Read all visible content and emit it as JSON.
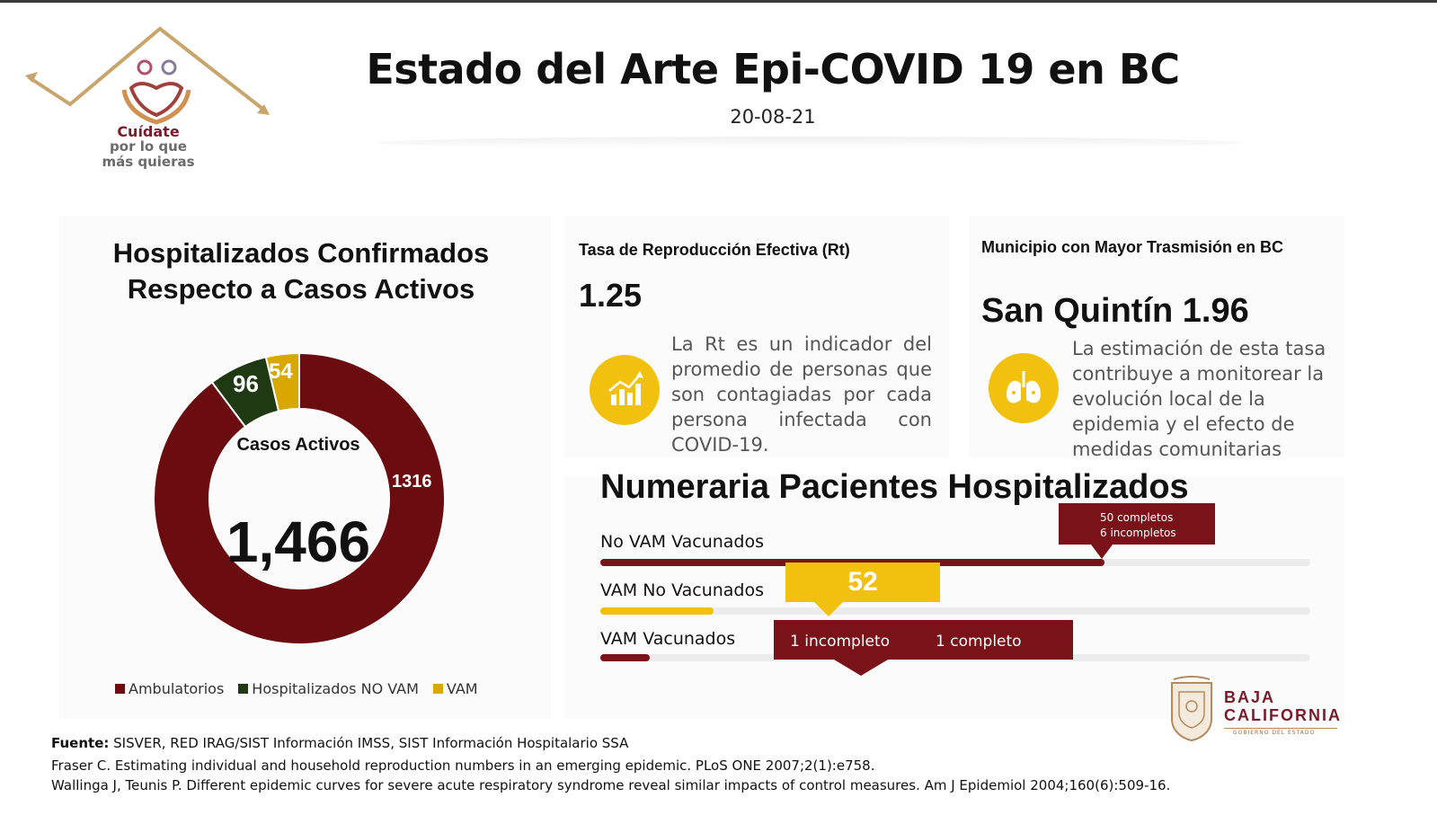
{
  "header": {
    "title": "Estado del Arte Epi-COVID 19 en BC",
    "date": "20-08-21",
    "logo": {
      "line1": "Cuídate",
      "line2": "por lo que",
      "line3": "más quieras"
    }
  },
  "hospitalizados": {
    "title_line1": "Hospitalizados Confirmados",
    "title_line2": "Respecto a Casos Activos",
    "center_label": "Casos Activos",
    "center_value": "1,466",
    "segments": [
      {
        "name": "Ambulatorios",
        "value": 1316,
        "label": "1316",
        "color": "#6b0c10"
      },
      {
        "name": "Hospitalizados NO VAM",
        "value": 96,
        "label": "96",
        "color": "#1f3a12"
      },
      {
        "name": "VAM",
        "value": 54,
        "label": "54",
        "color": "#d9a800"
      }
    ]
  },
  "rt": {
    "title": "Tasa de Reproducción Efectiva (Rt)",
    "value": "1.25",
    "description": "La Rt es un indicador del promedio de personas que son contagiadas por cada persona infectada con COVID-19.",
    "icon": "chart-growth-icon"
  },
  "municipio": {
    "title": "Municipio con Mayor Trasmisión en BC",
    "value": "San Quintín 1.96",
    "description": "La estimación de esta tasa contribuye a monitorear la evolución local de la epidemia y el efecto de medidas comunitarias",
    "icon": "lungs-icon"
  },
  "numeraria": {
    "title": "Numeraria Pacientes Hospitalizados",
    "rows": [
      {
        "label": "No VAM Vacunados",
        "fill_fraction": 0.71,
        "color": "#7a1219",
        "callout_line1": "50  completos",
        "callout_line2": "6 incompletos"
      },
      {
        "label": "VAM No Vacunados",
        "fill_fraction": 0.16,
        "color": "#f2c00e",
        "callout_value": "52"
      },
      {
        "label": "VAM Vacunados",
        "fill_fraction": 0.07,
        "color": "#7a1219",
        "callout_a": "1 incompleto",
        "callout_b": "1 completo"
      }
    ]
  },
  "bc_logo": {
    "line1": "BAJA",
    "line2": "CALIFORNIA",
    "line3": "GOBIERNO DEL ESTADO"
  },
  "footer": {
    "fuente_label": "Fuente:",
    "fuente_text": " SISVER, RED IRAG/SIST Información IMSS, SIST Información Hospitalario SSA",
    "ref1": "Fraser C. Estimating individual and household reproduction numbers in an emerging epidemic. PLoS ONE 2007;2(1):e758.",
    "ref2": "Wallinga J, Teunis P. Different epidemic curves for severe acute respiratory syndrome reveal similar impacts of control measures. Am J Epidemiol 2004;160(6):509-16."
  }
}
